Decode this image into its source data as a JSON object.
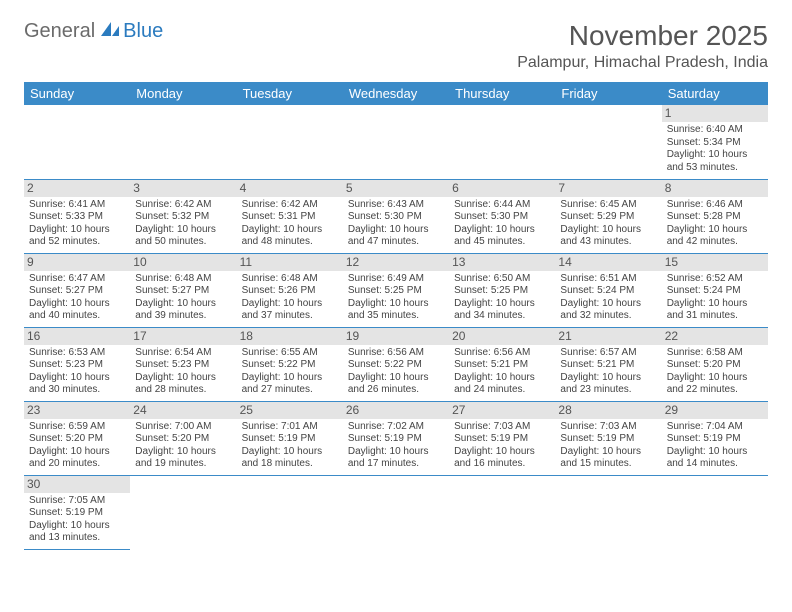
{
  "brand": {
    "general": "General",
    "blue": "Blue"
  },
  "title": "November 2025",
  "location": "Palampur, Himachal Pradesh, India",
  "colors": {
    "header_bg": "#3b8bc8",
    "header_text": "#ffffff",
    "daynum_bg": "#e4e4e4",
    "row_border": "#3b8bc8",
    "brand_gray": "#6b6b6b",
    "brand_blue": "#2b7bbf"
  },
  "daysOfWeek": [
    "Sunday",
    "Monday",
    "Tuesday",
    "Wednesday",
    "Thursday",
    "Friday",
    "Saturday"
  ],
  "weeks": [
    [
      {
        "n": "",
        "sr": "",
        "ss": "",
        "d1": "",
        "d2": ""
      },
      {
        "n": "",
        "sr": "",
        "ss": "",
        "d1": "",
        "d2": ""
      },
      {
        "n": "",
        "sr": "",
        "ss": "",
        "d1": "",
        "d2": ""
      },
      {
        "n": "",
        "sr": "",
        "ss": "",
        "d1": "",
        "d2": ""
      },
      {
        "n": "",
        "sr": "",
        "ss": "",
        "d1": "",
        "d2": ""
      },
      {
        "n": "",
        "sr": "",
        "ss": "",
        "d1": "",
        "d2": ""
      },
      {
        "n": "1",
        "sr": "Sunrise: 6:40 AM",
        "ss": "Sunset: 5:34 PM",
        "d1": "Daylight: 10 hours",
        "d2": "and 53 minutes."
      }
    ],
    [
      {
        "n": "2",
        "sr": "Sunrise: 6:41 AM",
        "ss": "Sunset: 5:33 PM",
        "d1": "Daylight: 10 hours",
        "d2": "and 52 minutes."
      },
      {
        "n": "3",
        "sr": "Sunrise: 6:42 AM",
        "ss": "Sunset: 5:32 PM",
        "d1": "Daylight: 10 hours",
        "d2": "and 50 minutes."
      },
      {
        "n": "4",
        "sr": "Sunrise: 6:42 AM",
        "ss": "Sunset: 5:31 PM",
        "d1": "Daylight: 10 hours",
        "d2": "and 48 minutes."
      },
      {
        "n": "5",
        "sr": "Sunrise: 6:43 AM",
        "ss": "Sunset: 5:30 PM",
        "d1": "Daylight: 10 hours",
        "d2": "and 47 minutes."
      },
      {
        "n": "6",
        "sr": "Sunrise: 6:44 AM",
        "ss": "Sunset: 5:30 PM",
        "d1": "Daylight: 10 hours",
        "d2": "and 45 minutes."
      },
      {
        "n": "7",
        "sr": "Sunrise: 6:45 AM",
        "ss": "Sunset: 5:29 PM",
        "d1": "Daylight: 10 hours",
        "d2": "and 43 minutes."
      },
      {
        "n": "8",
        "sr": "Sunrise: 6:46 AM",
        "ss": "Sunset: 5:28 PM",
        "d1": "Daylight: 10 hours",
        "d2": "and 42 minutes."
      }
    ],
    [
      {
        "n": "9",
        "sr": "Sunrise: 6:47 AM",
        "ss": "Sunset: 5:27 PM",
        "d1": "Daylight: 10 hours",
        "d2": "and 40 minutes."
      },
      {
        "n": "10",
        "sr": "Sunrise: 6:48 AM",
        "ss": "Sunset: 5:27 PM",
        "d1": "Daylight: 10 hours",
        "d2": "and 39 minutes."
      },
      {
        "n": "11",
        "sr": "Sunrise: 6:48 AM",
        "ss": "Sunset: 5:26 PM",
        "d1": "Daylight: 10 hours",
        "d2": "and 37 minutes."
      },
      {
        "n": "12",
        "sr": "Sunrise: 6:49 AM",
        "ss": "Sunset: 5:25 PM",
        "d1": "Daylight: 10 hours",
        "d2": "and 35 minutes."
      },
      {
        "n": "13",
        "sr": "Sunrise: 6:50 AM",
        "ss": "Sunset: 5:25 PM",
        "d1": "Daylight: 10 hours",
        "d2": "and 34 minutes."
      },
      {
        "n": "14",
        "sr": "Sunrise: 6:51 AM",
        "ss": "Sunset: 5:24 PM",
        "d1": "Daylight: 10 hours",
        "d2": "and 32 minutes."
      },
      {
        "n": "15",
        "sr": "Sunrise: 6:52 AM",
        "ss": "Sunset: 5:24 PM",
        "d1": "Daylight: 10 hours",
        "d2": "and 31 minutes."
      }
    ],
    [
      {
        "n": "16",
        "sr": "Sunrise: 6:53 AM",
        "ss": "Sunset: 5:23 PM",
        "d1": "Daylight: 10 hours",
        "d2": "and 30 minutes."
      },
      {
        "n": "17",
        "sr": "Sunrise: 6:54 AM",
        "ss": "Sunset: 5:23 PM",
        "d1": "Daylight: 10 hours",
        "d2": "and 28 minutes."
      },
      {
        "n": "18",
        "sr": "Sunrise: 6:55 AM",
        "ss": "Sunset: 5:22 PM",
        "d1": "Daylight: 10 hours",
        "d2": "and 27 minutes."
      },
      {
        "n": "19",
        "sr": "Sunrise: 6:56 AM",
        "ss": "Sunset: 5:22 PM",
        "d1": "Daylight: 10 hours",
        "d2": "and 26 minutes."
      },
      {
        "n": "20",
        "sr": "Sunrise: 6:56 AM",
        "ss": "Sunset: 5:21 PM",
        "d1": "Daylight: 10 hours",
        "d2": "and 24 minutes."
      },
      {
        "n": "21",
        "sr": "Sunrise: 6:57 AM",
        "ss": "Sunset: 5:21 PM",
        "d1": "Daylight: 10 hours",
        "d2": "and 23 minutes."
      },
      {
        "n": "22",
        "sr": "Sunrise: 6:58 AM",
        "ss": "Sunset: 5:20 PM",
        "d1": "Daylight: 10 hours",
        "d2": "and 22 minutes."
      }
    ],
    [
      {
        "n": "23",
        "sr": "Sunrise: 6:59 AM",
        "ss": "Sunset: 5:20 PM",
        "d1": "Daylight: 10 hours",
        "d2": "and 20 minutes."
      },
      {
        "n": "24",
        "sr": "Sunrise: 7:00 AM",
        "ss": "Sunset: 5:20 PM",
        "d1": "Daylight: 10 hours",
        "d2": "and 19 minutes."
      },
      {
        "n": "25",
        "sr": "Sunrise: 7:01 AM",
        "ss": "Sunset: 5:19 PM",
        "d1": "Daylight: 10 hours",
        "d2": "and 18 minutes."
      },
      {
        "n": "26",
        "sr": "Sunrise: 7:02 AM",
        "ss": "Sunset: 5:19 PM",
        "d1": "Daylight: 10 hours",
        "d2": "and 17 minutes."
      },
      {
        "n": "27",
        "sr": "Sunrise: 7:03 AM",
        "ss": "Sunset: 5:19 PM",
        "d1": "Daylight: 10 hours",
        "d2": "and 16 minutes."
      },
      {
        "n": "28",
        "sr": "Sunrise: 7:03 AM",
        "ss": "Sunset: 5:19 PM",
        "d1": "Daylight: 10 hours",
        "d2": "and 15 minutes."
      },
      {
        "n": "29",
        "sr": "Sunrise: 7:04 AM",
        "ss": "Sunset: 5:19 PM",
        "d1": "Daylight: 10 hours",
        "d2": "and 14 minutes."
      }
    ],
    [
      {
        "n": "30",
        "sr": "Sunrise: 7:05 AM",
        "ss": "Sunset: 5:19 PM",
        "d1": "Daylight: 10 hours",
        "d2": "and 13 minutes."
      },
      {
        "n": "",
        "sr": "",
        "ss": "",
        "d1": "",
        "d2": ""
      },
      {
        "n": "",
        "sr": "",
        "ss": "",
        "d1": "",
        "d2": ""
      },
      {
        "n": "",
        "sr": "",
        "ss": "",
        "d1": "",
        "d2": ""
      },
      {
        "n": "",
        "sr": "",
        "ss": "",
        "d1": "",
        "d2": ""
      },
      {
        "n": "",
        "sr": "",
        "ss": "",
        "d1": "",
        "d2": ""
      },
      {
        "n": "",
        "sr": "",
        "ss": "",
        "d1": "",
        "d2": ""
      }
    ]
  ]
}
